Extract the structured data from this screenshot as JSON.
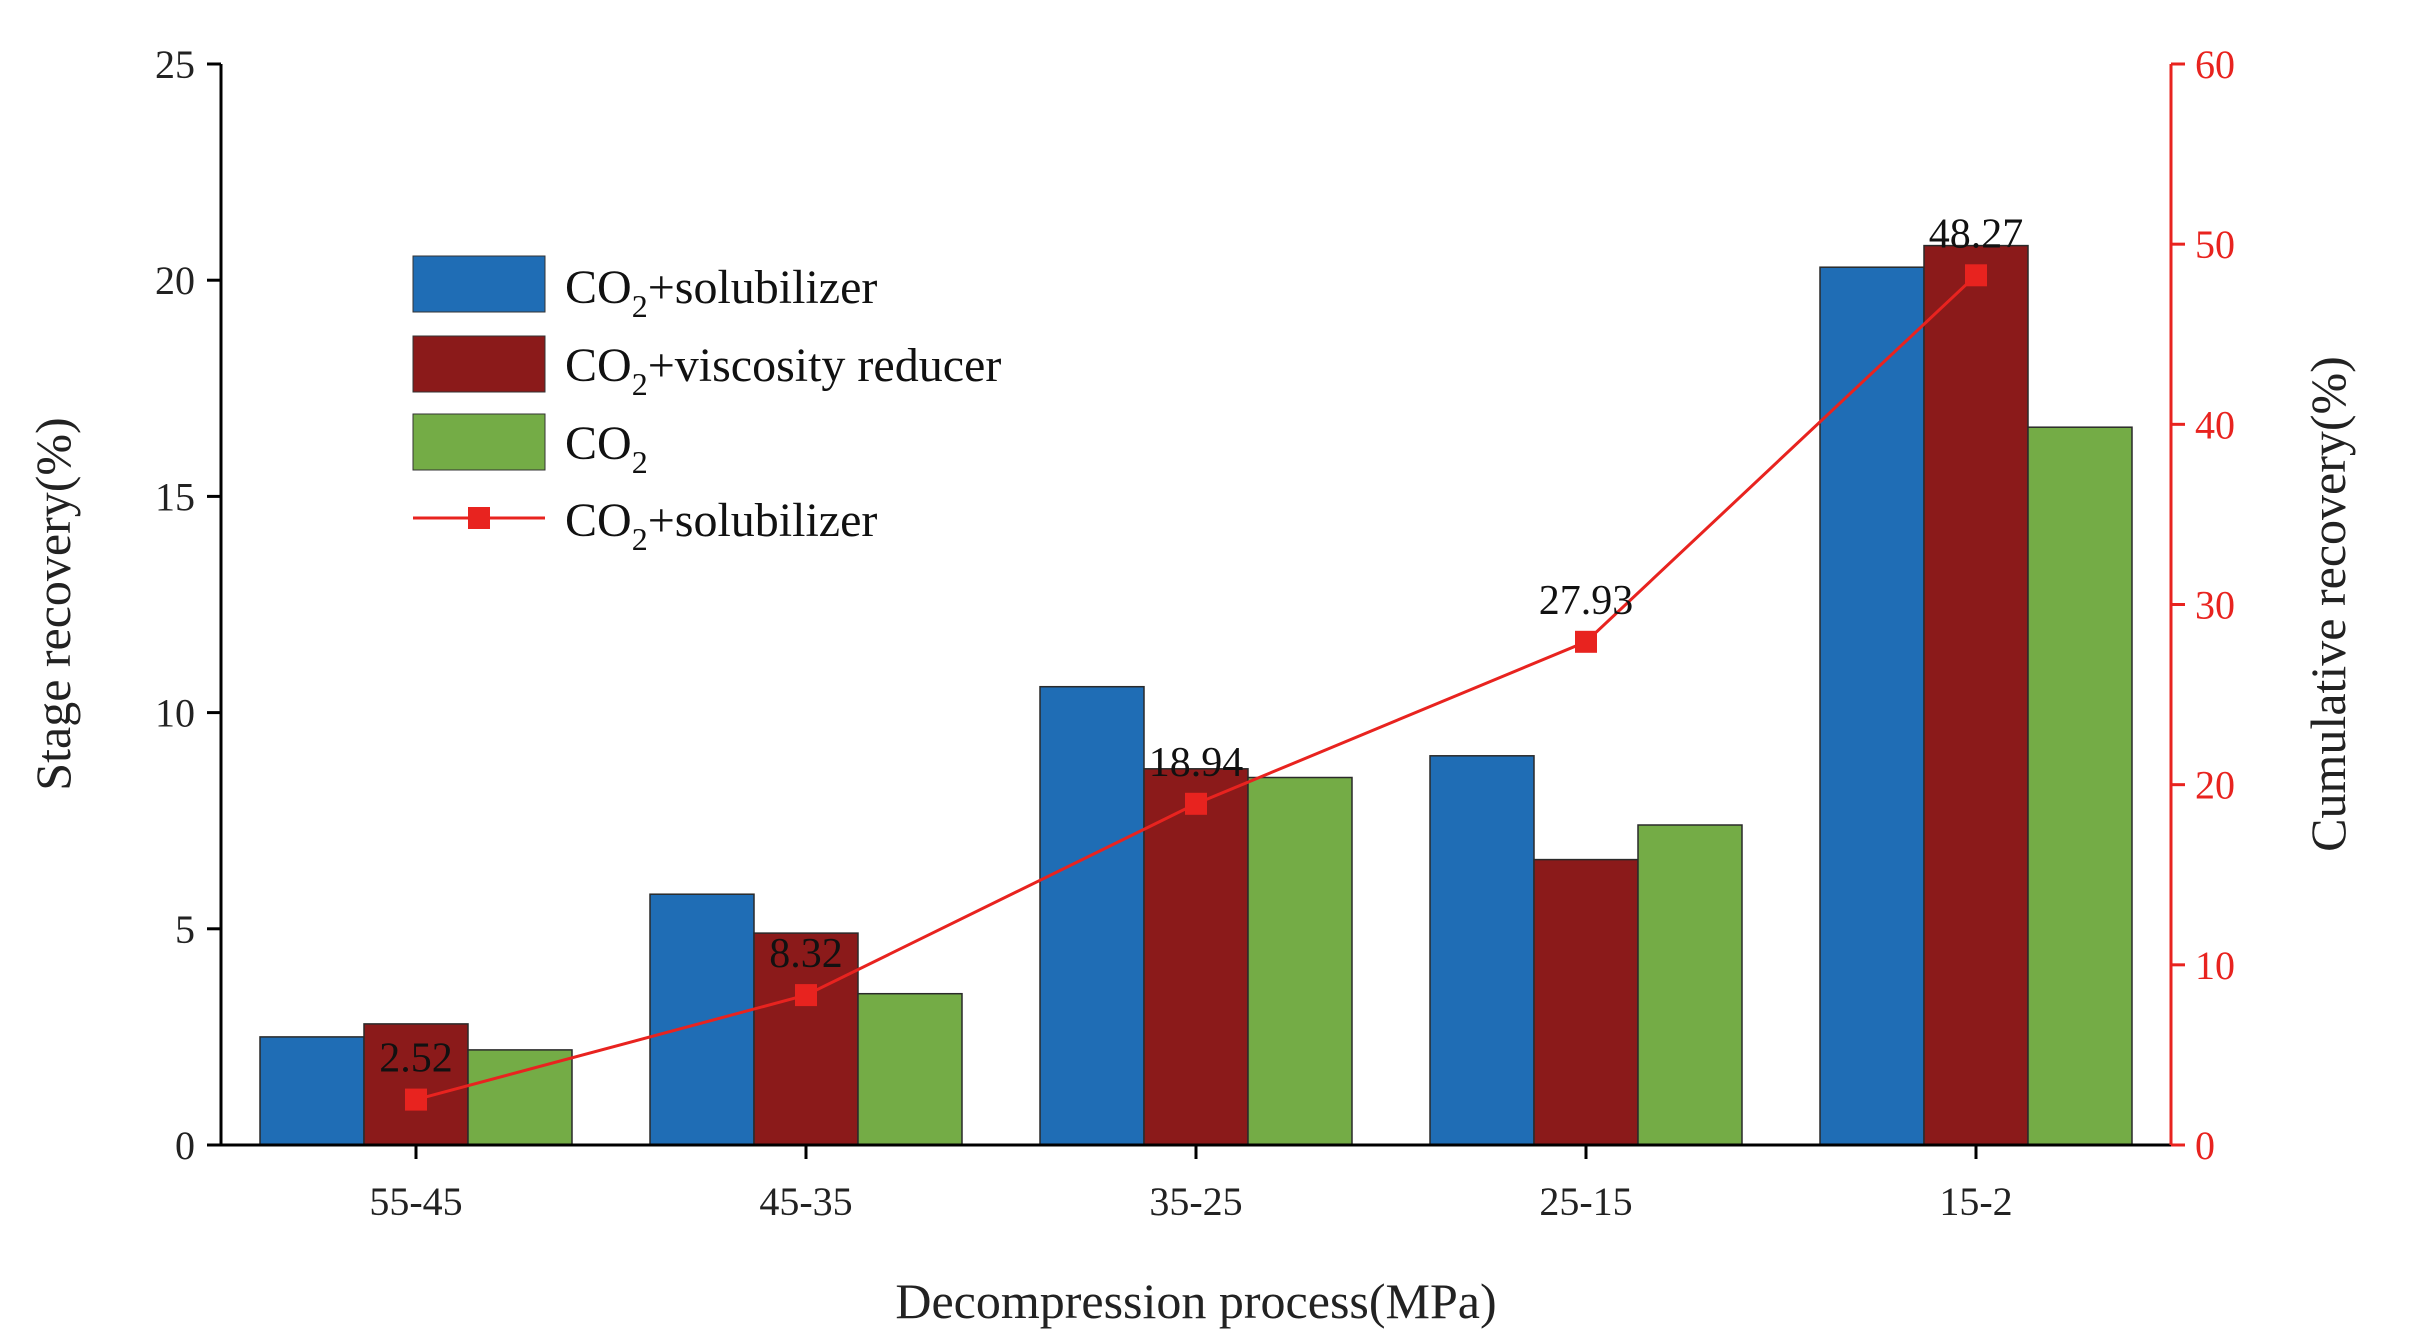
{
  "chart_data": {
    "type": "bar",
    "categories": [
      "55-45",
      "45-35",
      "35-25",
      "25-15",
      "15-2"
    ],
    "series": [
      {
        "name": "CO2+solubilizer",
        "color": "#1f6db5",
        "axis": "left",
        "values": [
          2.5,
          5.8,
          10.6,
          9.0,
          20.3
        ]
      },
      {
        "name": "CO2+viscosity reducer",
        "color": "#8b1a1a",
        "axis": "left",
        "values": [
          2.8,
          4.9,
          8.7,
          6.6,
          20.8
        ]
      },
      {
        "name": "CO2",
        "color": "#74ac46",
        "axis": "left",
        "values": [
          2.2,
          3.5,
          8.5,
          7.4,
          16.6
        ]
      }
    ],
    "line_series": {
      "name": "CO2+solubilizer",
      "type": "line",
      "color": "#e8231f",
      "axis": "right",
      "values": [
        2.52,
        8.32,
        18.94,
        27.93,
        48.27
      ],
      "labels": [
        "2.52",
        "8.32",
        "18.94",
        "27.93",
        "48.27"
      ]
    },
    "xlabel": "Decompression process(MPa)",
    "ylabel": "Stage recovery(%)",
    "ylabel_right": "Cumulative recovery(%)",
    "ylim": [
      0,
      25
    ],
    "ylim_right": [
      0,
      60
    ],
    "yticks": [
      0,
      5,
      10,
      15,
      20,
      25
    ],
    "yticks_right": [
      0,
      10,
      20,
      30,
      40,
      50,
      60
    ],
    "grid": false,
    "legend": {
      "placement": "top-left",
      "entries": [
        {
          "base": "CO",
          "sub": "2",
          "rest": "+solubilizer"
        },
        {
          "base": "CO",
          "sub": "2",
          "rest": "+viscosity reducer"
        },
        {
          "base": "CO",
          "sub": "2",
          "rest": ""
        },
        {
          "base": "CO",
          "sub": "2",
          "rest": "+solubilizer"
        }
      ]
    }
  }
}
